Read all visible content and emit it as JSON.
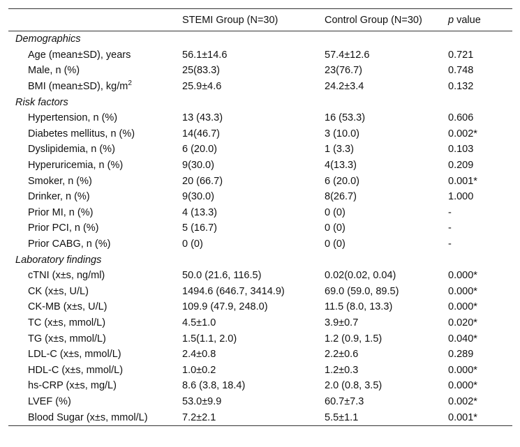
{
  "header": {
    "columns": [
      "STEMI Group (N=30)",
      "Control Group (N=30)"
    ],
    "p_italic": "p",
    "p_rest": "value"
  },
  "sections": [
    {
      "title": "Demographics",
      "rows": [
        [
          "Age (mean±SD), years",
          "56.1±14.6",
          "57.4±12.6",
          "0.721"
        ],
        [
          "Male, n (%)",
          "25(83.3)",
          "23(76.7)",
          "0.748"
        ],
        [
          {
            "text": "BMI (mean±SD), kg/m",
            "sup": "2"
          },
          "25.9±4.6",
          "24.2±3.4",
          "0.132"
        ]
      ]
    },
    {
      "title": "Risk factors",
      "rows": [
        [
          "Hypertension, n (%)",
          "13 (43.3)",
          "16 (53.3)",
          "0.606"
        ],
        [
          "Diabetes mellitus, n (%)",
          "14(46.7)",
          "3 (10.0)",
          "0.002*"
        ],
        [
          "Dyslipidemia, n (%)",
          "6 (20.0)",
          "1 (3.3)",
          "0.103"
        ],
        [
          "Hyperuricemia, n (%)",
          "9(30.0)",
          "4(13.3)",
          "0.209"
        ],
        [
          "Smoker, n (%)",
          "20 (66.7)",
          "6 (20.0)",
          "0.001*"
        ],
        [
          "Drinker, n (%)",
          "9(30.0)",
          "8(26.7)",
          "1.000"
        ],
        [
          "Prior MI, n (%)",
          "4 (13.3)",
          "0 (0)",
          "-"
        ],
        [
          "Prior PCI, n (%)",
          "5 (16.7)",
          "0 (0)",
          "-"
        ],
        [
          "Prior CABG, n (%)",
          "0 (0)",
          "0 (0)",
          "-"
        ]
      ]
    },
    {
      "title": "Laboratory findings",
      "rows": [
        [
          "cTNI (x±s, ng/ml)",
          "50.0 (21.6, 116.5)",
          "0.02(0.02, 0.04)",
          "0.000*"
        ],
        [
          "CK (x±s, U/L)",
          "1494.6 (646.7, 3414.9)",
          "69.0 (59.0, 89.5)",
          "0.000*"
        ],
        [
          "CK-MB (x±s, U/L)",
          "109.9 (47.9, 248.0)",
          "11.5 (8.0, 13.3)",
          "0.000*"
        ],
        [
          "TC (x±s, mmol/L)",
          "4.5±1.0",
          "3.9±0.7",
          "0.020*"
        ],
        [
          "TG (x±s, mmol/L)",
          "1.5(1.1, 2.0)",
          "1.2 (0.9, 1.5)",
          "0.040*"
        ],
        [
          "LDL-C (x±s, mmol/L)",
          "2.4±0.8",
          "2.2±0.6",
          "0.289"
        ],
        [
          "HDL-C (x±s, mmol/L)",
          "1.0±0.2",
          "1.2±0.3",
          "0.000*"
        ],
        [
          "hs-CRP (x±s, mg/L)",
          "8.6 (3.8, 18.4)",
          "2.0 (0.8, 3.5)",
          "0.000*"
        ],
        [
          "LVEF (%)",
          "53.0±9.9",
          "60.7±7.3",
          "0.002*"
        ],
        [
          "Blood Sugar (x±s, mmol/L)",
          "7.2±2.1",
          "5.5±1.1",
          "0.001*"
        ]
      ]
    }
  ]
}
